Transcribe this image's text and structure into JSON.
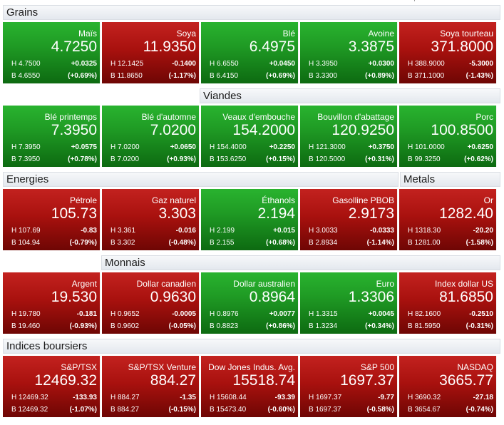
{
  "colors": {
    "up": "#1f9a24",
    "down": "#a8110e"
  },
  "sections": [
    {
      "title": "Grains",
      "items": [
        {
          "name": "Maïs",
          "price": "4.7250",
          "high": "H 4.7500",
          "low": "B 4.6550",
          "change": "+0.0325",
          "pct": "(+0.69%)",
          "dir": "up"
        },
        {
          "name": "Soya",
          "price": "11.9350",
          "high": "H 12.1425",
          "low": "B 11.8650",
          "change": "-0.1400",
          "pct": "(-1.17%)",
          "dir": "down"
        },
        {
          "name": "Blé",
          "price": "6.4975",
          "high": "H 6.6550",
          "low": "B 6.4150",
          "change": "+0.0450",
          "pct": "(+0.69%)",
          "dir": "up"
        },
        {
          "name": "Avoine",
          "price": "3.3875",
          "high": "H 3.3950",
          "low": "B 3.3300",
          "change": "+0.0300",
          "pct": "(+0.89%)",
          "dir": "up"
        },
        {
          "name": "Soya tourteau",
          "price": "371.8000",
          "high": "H 388.9000",
          "low": "B 371.1000",
          "change": "-5.3000",
          "pct": "(-1.43%)",
          "dir": "down"
        }
      ]
    },
    {
      "title": "Viandes",
      "items": [
        {
          "name": "Blé printemps",
          "price": "7.3950",
          "high": "H 7.3950",
          "low": "B 7.3950",
          "change": "+0.0575",
          "pct": "(+0.78%)",
          "dir": "up"
        },
        {
          "name": "Blé d'automne",
          "price": "7.0200",
          "high": "H 7.0200",
          "low": "B 7.0200",
          "change": "+0.0650",
          "pct": "(+0.93%)",
          "dir": "up"
        },
        {
          "name": "Veaux d'embouche",
          "price": "154.2000",
          "high": "H 154.4000",
          "low": "B 153.6250",
          "change": "+0.2250",
          "pct": "(+0.15%)",
          "dir": "up"
        },
        {
          "name": "Bouvillon d'abattage",
          "price": "120.9250",
          "high": "H 121.3000",
          "low": "B 120.5000",
          "change": "+0.3750",
          "pct": "(+0.31%)",
          "dir": "up"
        },
        {
          "name": "Porc",
          "price": "100.8500",
          "high": "H 101.0000",
          "low": "B 99.3250",
          "change": "+0.6250",
          "pct": "(+0.62%)",
          "dir": "up"
        }
      ]
    },
    {
      "title": "Energies",
      "title2": "Metals",
      "items": [
        {
          "name": "Pétrole",
          "price": "105.73",
          "high": "H 107.69",
          "low": "B 104.94",
          "change": "-0.83",
          "pct": "(-0.79%)",
          "dir": "down"
        },
        {
          "name": "Gaz naturel",
          "price": "3.303",
          "high": "H 3.361",
          "low": "B 3.302",
          "change": "-0.016",
          "pct": "(-0.48%)",
          "dir": "down"
        },
        {
          "name": "Éthanols",
          "price": "2.194",
          "high": "H 2.199",
          "low": "B 2.155",
          "change": "+0.015",
          "pct": "(+0.68%)",
          "dir": "up"
        },
        {
          "name": "Gasolline PBOB",
          "price": "2.9173",
          "high": "H 3.0033",
          "low": "B 2.8934",
          "change": "-0.0333",
          "pct": "(-1.14%)",
          "dir": "down"
        },
        {
          "name": "Or",
          "price": "1282.40",
          "high": "H 1318.30",
          "low": "B 1281.00",
          "change": "-20.20",
          "pct": "(-1.58%)",
          "dir": "down"
        }
      ]
    },
    {
      "title": "Monnais",
      "items": [
        {
          "name": "Argent",
          "price": "19.530",
          "high": "H 19.780",
          "low": "B 19.460",
          "change": "-0.181",
          "pct": "(-0.93%)",
          "dir": "down"
        },
        {
          "name": "Dollar canadien",
          "price": "0.9630",
          "high": "H 0.9652",
          "low": "B 0.9602",
          "change": "-0.0005",
          "pct": "(-0.05%)",
          "dir": "down"
        },
        {
          "name": "Dollar australien",
          "price": "0.8964",
          "high": "H 0.8976",
          "low": "B 0.8823",
          "change": "+0.0077",
          "pct": "(+0.86%)",
          "dir": "up"
        },
        {
          "name": "Euro",
          "price": "1.3306",
          "high": "H 1.3315",
          "low": "B 1.3234",
          "change": "+0.0045",
          "pct": "(+0.34%)",
          "dir": "up"
        },
        {
          "name": "Index dollar US",
          "price": "81.6850",
          "high": "H 82.1600",
          "low": "B 81.5950",
          "change": "-0.2510",
          "pct": "(-0.31%)",
          "dir": "down"
        }
      ]
    },
    {
      "title": "Indices boursiers",
      "items": [
        {
          "name": "S&P/TSX",
          "price": "12469.32",
          "high": "H 12469.32",
          "low": "B 12469.32",
          "change": "-133.93",
          "pct": "(-1.07%)",
          "dir": "down"
        },
        {
          "name": "S&P/TSX Venture",
          "price": "884.27",
          "high": "H 884.27",
          "low": "B 884.27",
          "change": "-1.35",
          "pct": "(-0.15%)",
          "dir": "down"
        },
        {
          "name": "Dow Jones Indus. Avg.",
          "price": "15518.74",
          "high": "H 15608.44",
          "low": "B 15473.40",
          "change": "-93.39",
          "pct": "(-0.60%)",
          "dir": "down"
        },
        {
          "name": "S&P 500",
          "price": "1697.37",
          "high": "H 1697.37",
          "low": "B 1697.37",
          "change": "-9.77",
          "pct": "(-0.58%)",
          "dir": "down"
        },
        {
          "name": "NASDAQ",
          "price": "3665.77",
          "high": "H 3690.32",
          "low": "B 3654.67",
          "change": "-27.18",
          "pct": "(-0.74%)",
          "dir": "down"
        }
      ]
    }
  ]
}
